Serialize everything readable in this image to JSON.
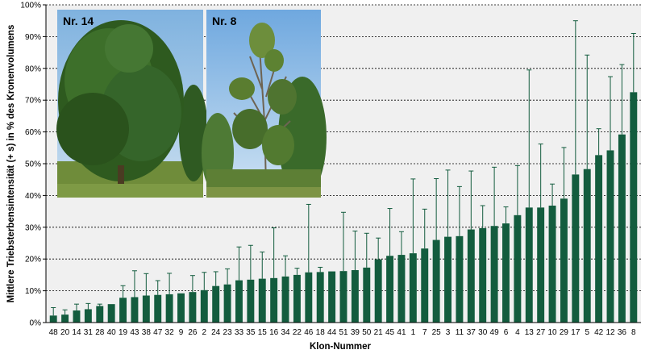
{
  "chart_data": {
    "type": "bar",
    "xlabel": "Klon-Nummer",
    "ylabel": "Mittlere Triebsterbensintensität (+ s) in % des Kronenvolumens",
    "ylim": [
      0,
      100
    ],
    "yticks": [
      "0%",
      "10%",
      "20%",
      "30%",
      "40%",
      "50%",
      "60%",
      "70%",
      "80%",
      "90%",
      "100%"
    ],
    "grid": "horizontal dashed",
    "categories": [
      "48",
      "20",
      "14",
      "31",
      "28",
      "40",
      "19",
      "43",
      "38",
      "47",
      "32",
      "9",
      "26",
      "2",
      "24",
      "23",
      "33",
      "35",
      "15",
      "16",
      "34",
      "22",
      "46",
      "18",
      "44",
      "51",
      "39",
      "50",
      "21",
      "45",
      "41",
      "1",
      "7",
      "25",
      "3",
      "11",
      "37",
      "30",
      "49",
      "6",
      "4",
      "13",
      "27",
      "10",
      "29",
      "17",
      "5",
      "42",
      "12",
      "36",
      "8"
    ],
    "values": [
      2.2,
      2.5,
      3.8,
      4.2,
      5.2,
      5.8,
      7.8,
      8.0,
      8.5,
      8.7,
      8.9,
      9.2,
      9.6,
      10.2,
      11.5,
      12.0,
      13.3,
      13.5,
      13.8,
      14.0,
      14.5,
      15.0,
      15.8,
      15.9,
      16.1,
      16.2,
      16.5,
      17.3,
      19.9,
      21.0,
      21.3,
      21.8,
      23.3,
      26.0,
      27.0,
      27.2,
      29.3,
      29.7,
      30.4,
      31.2,
      33.8,
      36.2,
      36.2,
      36.8,
      39.0,
      46.6,
      48.3,
      52.7,
      54.2,
      59.2,
      72.5
    ],
    "errors": [
      2.5,
      1.5,
      2.0,
      1.8,
      0.6,
      0.0,
      3.8,
      8.3,
      6.9,
      4.5,
      6.6,
      0.0,
      5.2,
      5.6,
      4.5,
      4.9,
      10.5,
      10.8,
      8.4,
      15.8,
      6.5,
      2.1,
      21.4,
      1.5,
      0.0,
      18.5,
      12.3,
      10.8,
      6.7,
      14.9,
      7.3,
      23.4,
      12.4,
      19.3,
      21.0,
      15.6,
      18.4,
      7.1,
      18.5,
      5.2,
      15.6,
      43.3,
      20.0,
      6.8,
      16.1,
      48.4,
      35.9,
      8.3,
      23.2,
      22.0,
      18.5
    ],
    "bar_color": "#135C3E"
  },
  "photos": [
    {
      "label": "Nr. 14"
    },
    {
      "label": "Nr. 8"
    }
  ]
}
